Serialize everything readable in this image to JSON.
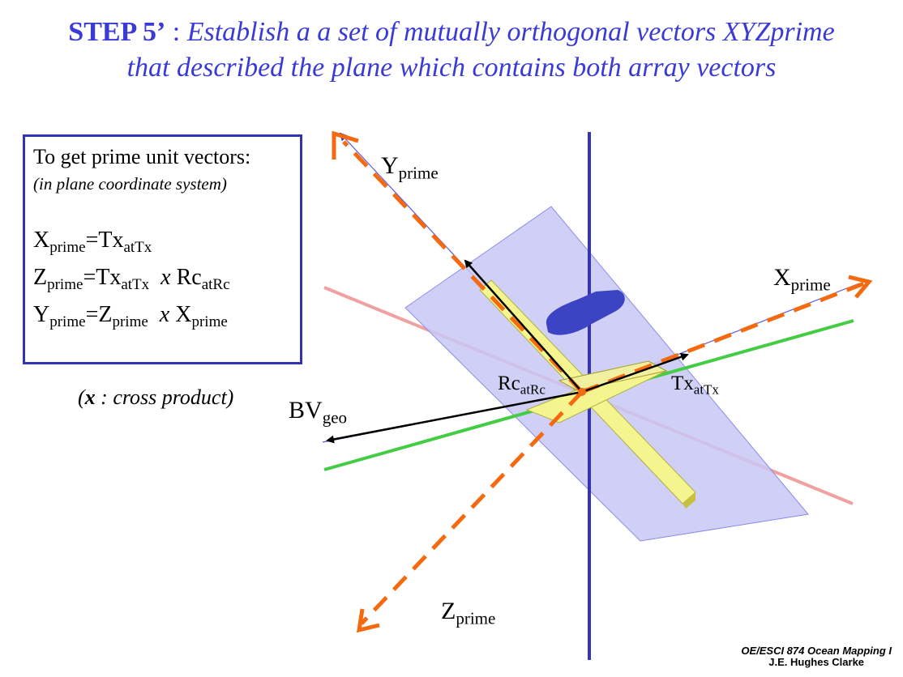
{
  "title": {
    "step": "STEP 5’",
    "separator": " : ",
    "line1_text": "Establish a a set of mutually orthogonal vectors XYZprime",
    "line2_text": "that described the plane which contains both array vectors"
  },
  "box": {
    "heading": "To get prime unit vectors:",
    "subheading": "(in plane coordinate system)",
    "eq1": {
      "lhs": "X",
      "lhs_sub": "prime",
      "eq": "=",
      "a": "Tx",
      "a_sub": "atTx"
    },
    "eq2": {
      "lhs": "Z",
      "lhs_sub": "prime",
      "eq": "=",
      "a": "Tx",
      "a_sub": "atTx",
      "op": "x",
      "b": "Rc",
      "b_sub": "atRc"
    },
    "eq3": {
      "lhs": "Y",
      "lhs_sub": "prime",
      "eq": "=",
      "a": "Z",
      "a_sub": "prime",
      "op": "x",
      "b": "X",
      "b_sub": "prime"
    }
  },
  "cross_note": {
    "open": "(",
    "symbol": "x",
    "text": " : cross product)"
  },
  "labels": {
    "yprime": {
      "base": "Y",
      "sub": "prime"
    },
    "xprime": {
      "base": "X",
      "sub": "prime"
    },
    "zprime": {
      "base": "Z",
      "sub": "prime"
    },
    "bvgeo": {
      "base": "BV",
      "sub": "geo"
    },
    "rcatrc": {
      "base": "Rc",
      "sub": "atRc"
    },
    "txattx": {
      "base": "Tx",
      "sub": "atTx"
    }
  },
  "credit": {
    "course": "OE/ESCI 874 Ocean Mapping I",
    "author": "J.E. Hughes Clarke"
  },
  "colors": {
    "title": "#3a3ad6",
    "plane_fill": "#c8c8f5",
    "vertical_axis": "#3333bb",
    "red_axis": "#f0a0a0",
    "green_axis": "#44cc44",
    "prime_dashed": "#f56a10",
    "array_bar": "#f5f590",
    "vessel": "#3c44c4"
  }
}
